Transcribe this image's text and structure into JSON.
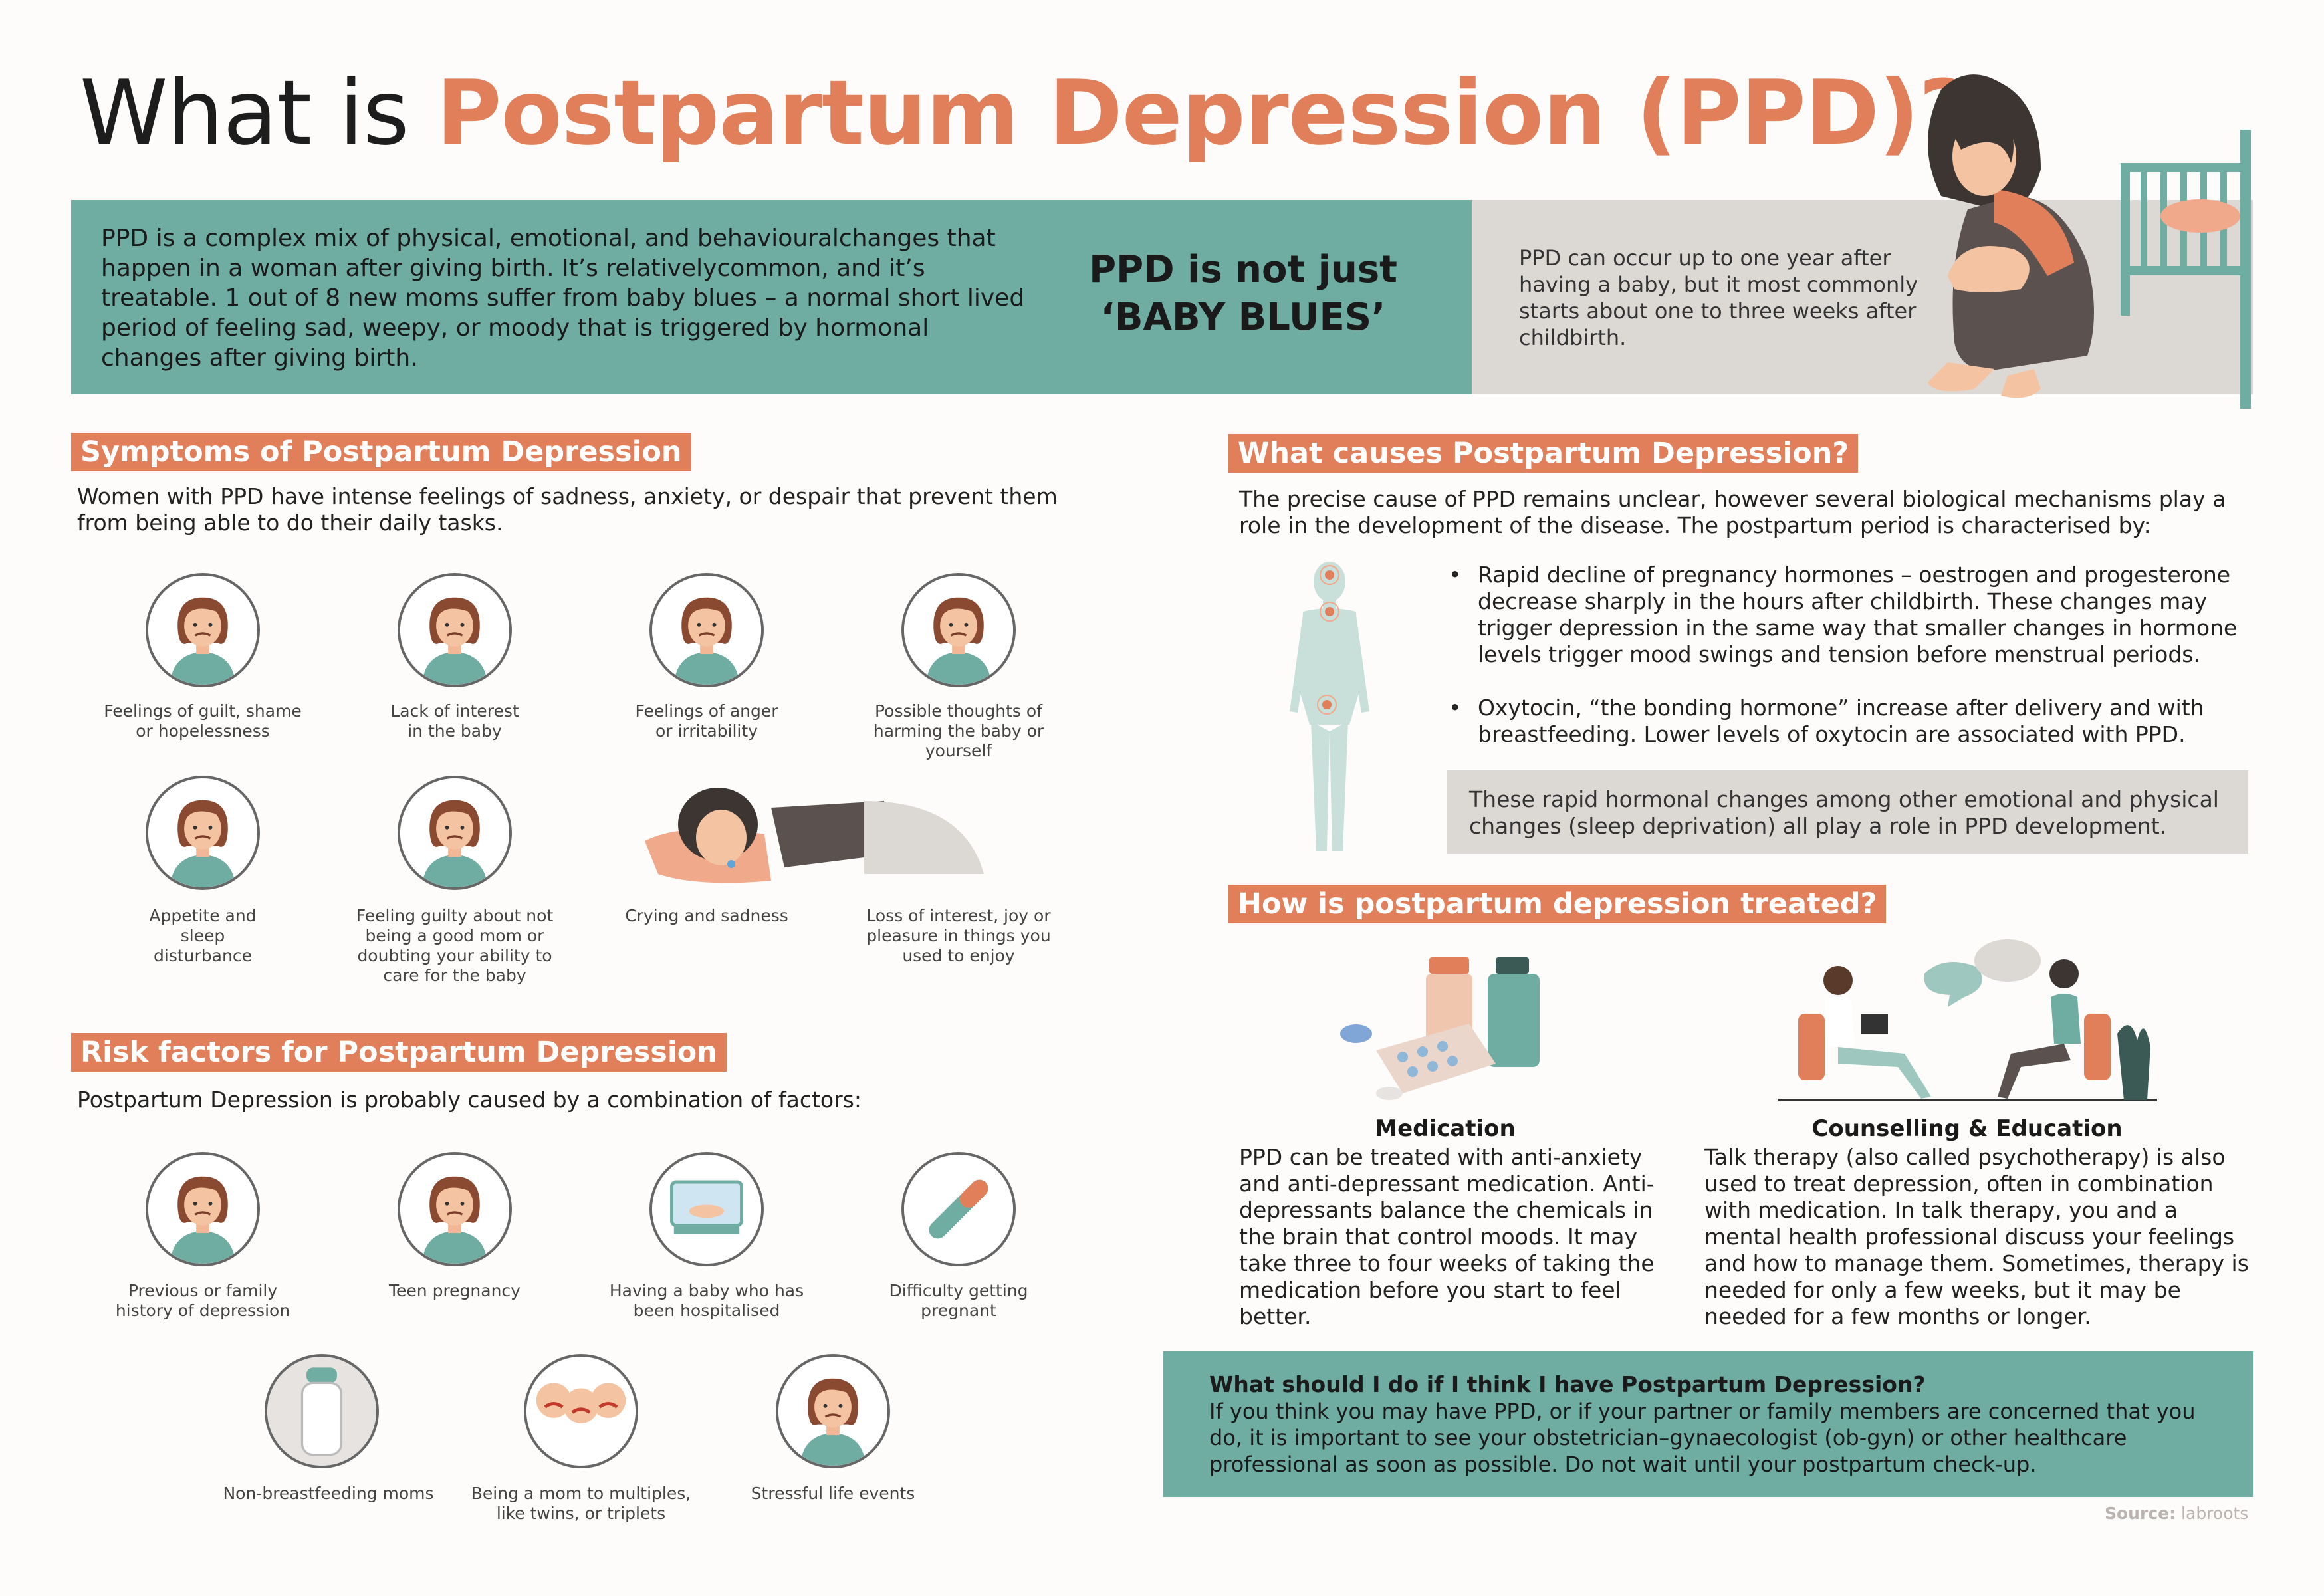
{
  "title": {
    "prefix": "What is ",
    "highlight": "Postpartum Depression (PPD)?"
  },
  "intro_band": {
    "text": "PPD is a complex mix of physical, emotional, and behaviouralchanges that happen in a woman after giving birth. It’s relativelycommon, and it’s treatable. 1 out of 8 new moms suffer from baby blues – a normal short lived period of feeling sad, weepy, or moody that is triggered by hormonal changes after giving birth.",
    "callout_line1": "PPD is not just",
    "callout_line2": "‘BABY BLUES’",
    "side_text": "PPD can occur up to one year after having a baby, but it most commonly starts about one to three weeks after childbirth."
  },
  "symptoms": {
    "heading": "Symptoms of Postpartum Depression",
    "intro": "Women with PPD have intense feelings of sadness, anxiety, or despair that prevent them from being able to do their daily tasks.",
    "items": [
      {
        "label": "Feelings of guilt, shame or hopelessness",
        "icon": "guilt-icon"
      },
      {
        "label": "Lack of interest in the baby",
        "icon": "disinterest-baby-icon"
      },
      {
        "label": "Feelings of anger or irritability",
        "icon": "anger-icon"
      },
      {
        "label": "Possible thoughts of harming the baby or yourself",
        "icon": "harm-thoughts-icon"
      },
      {
        "label": "Appetite and sleep disturbance",
        "icon": "sleep-appetite-icon"
      },
      {
        "label": "Feeling guilty about not being a good mom or doubting your ability to care for the baby",
        "icon": "doubt-mom-icon"
      },
      {
        "label": "Crying and sadness",
        "icon": "crying-woman-icon"
      },
      {
        "label": "Loss of interest, joy or pleasure in things you used to enjoy",
        "icon": "loss-interest-icon"
      }
    ]
  },
  "risk_factors": {
    "heading": "Risk factors for Postpartum Depression",
    "intro": "Postpartum Depression is probably caused by a combination of factors:",
    "items": [
      {
        "label": "Previous or family history of depression",
        "icon": "depressed-woman-icon"
      },
      {
        "label": "Teen pregnancy",
        "icon": "teen-mom-icon"
      },
      {
        "label": "Having a baby who has been hospitalised",
        "icon": "incubator-icon"
      },
      {
        "label": "Difficulty getting pregnant",
        "icon": "pregnancy-test-icon"
      },
      {
        "label": "Non-breastfeeding moms",
        "icon": "baby-bottle-icon"
      },
      {
        "label": "Being a mom to multiples, like twins, or triplets",
        "icon": "triplets-icon"
      },
      {
        "label": "Stressful life events",
        "icon": "stress-calendar-icon"
      }
    ]
  },
  "causes": {
    "heading": "What causes Postpartum Depression?",
    "intro": "The precise cause of PPD remains unclear, however several biological mechanisms play a role in the development of the disease. The postpartum period is characterised by:",
    "bullets": [
      "Rapid decline of pregnancy hormones – oestrogen and progesterone decrease sharply in the hours after childbirth. These changes may trigger depression in the same way that smaller changes in hormone levels trigger mood swings and tension before menstrual periods.",
      "Oxytocin, “the bonding hormone” increase after delivery and with breastfeeding. Lower levels of oxytocin are associated with PPD."
    ],
    "note": "These rapid hormonal changes among other emotional and physical changes (sleep deprivation) all play a role in PPD development."
  },
  "treatment": {
    "heading": "How is postpartum depression treated?",
    "medication": {
      "title": "Medication",
      "text": "PPD can be treated with anti-anxiety and anti-depressant medication. Anti-depressants balance the chemicals in the brain that control moods. It may take three to four weeks of taking the medication before you start to feel better."
    },
    "counselling": {
      "title": "Counselling & Education",
      "text": "Talk therapy (also called psychotherapy) is also used to treat depression, often in combination with medication. In talk therapy, you and a mental health professional discuss your feelings and how to manage them. Sometimes, therapy is needed for only a few weeks, but it may be needed for a few months or longer."
    }
  },
  "action": {
    "question": "What should I do if I think I have Postpartum Depression?",
    "answer": "If you think you may have PPD, or if your partner or family members are concerned that you do, it is important to see your obstetrician–gynaecologist (ob-gyn) or other healthcare professional as soon as possible. Do not wait until your postpartum check-up."
  },
  "source": {
    "label": "Source:",
    "value": "labroots"
  },
  "colors": {
    "accent": "#E07F5A",
    "teal": "#6FADA3",
    "gray": "#DCD8D4",
    "background": "#FDFCFB"
  }
}
